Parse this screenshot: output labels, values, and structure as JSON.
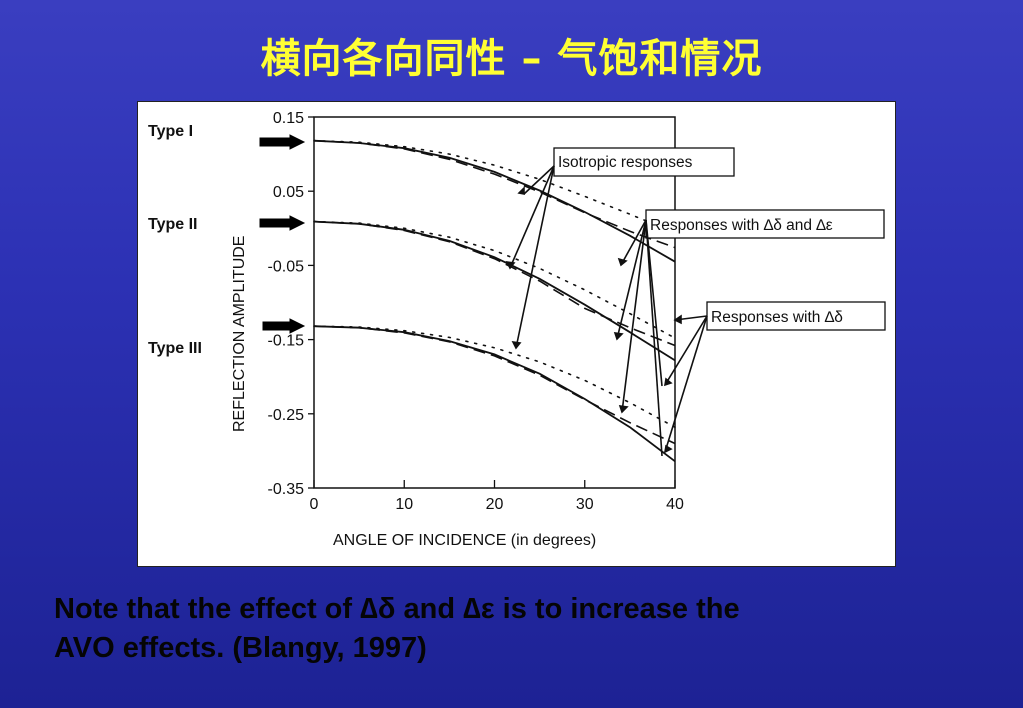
{
  "slide": {
    "title": "横向各向同性 – 气饱和情况",
    "note_line1": "Note that the effect of ∆δ and ∆ε is to increase the",
    "note_line2": "AVO effects. (Blangy, 1997)"
  },
  "chart_data": {
    "type": "line",
    "title": "",
    "xlabel": "ANGLE OF INCIDENCE (in degrees)",
    "ylabel": "REFLECTION AMPLITUDE",
    "xlim": [
      0,
      40
    ],
    "ylim": [
      -0.35,
      0.15
    ],
    "xticks": [
      "0",
      "10",
      "20",
      "30",
      "40"
    ],
    "yticks": [
      "0.15",
      "0.05",
      "-0.05",
      "-0.15",
      "-0.25",
      "-0.35"
    ],
    "grid": false,
    "type_labels": [
      "Type I",
      "Type II",
      "Type III"
    ],
    "callouts": [
      "Isotropic responses",
      "Responses with ∆δ and ∆ε",
      "Responses with ∆δ"
    ],
    "x": [
      0,
      5,
      10,
      15,
      20,
      25,
      30,
      35,
      40
    ],
    "series": [
      {
        "group": "Type I",
        "style": "solid",
        "values": [
          0.118,
          0.115,
          0.108,
          0.095,
          0.076,
          0.051,
          0.022,
          -0.01,
          -0.045
        ]
      },
      {
        "group": "Type I",
        "style": "dashed",
        "values": [
          0.118,
          0.115,
          0.107,
          0.093,
          0.073,
          0.049,
          0.021,
          -0.004,
          -0.026
        ]
      },
      {
        "group": "Type I",
        "style": "dotted",
        "values": [
          0.118,
          0.116,
          0.11,
          0.1,
          0.085,
          0.066,
          0.043,
          0.019,
          -0.006
        ]
      },
      {
        "group": "Type II",
        "style": "solid",
        "values": [
          0.009,
          0.006,
          -0.002,
          -0.017,
          -0.039,
          -0.068,
          -0.103,
          -0.14,
          -0.178
        ]
      },
      {
        "group": "Type II",
        "style": "dashed",
        "values": [
          0.009,
          0.006,
          -0.003,
          -0.018,
          -0.041,
          -0.071,
          -0.108,
          -0.134,
          -0.158
        ]
      },
      {
        "group": "Type II",
        "style": "dotted",
        "values": [
          0.009,
          0.007,
          0.0,
          -0.012,
          -0.03,
          -0.054,
          -0.083,
          -0.115,
          -0.148
        ]
      },
      {
        "group": "Type III",
        "style": "solid",
        "values": [
          -0.132,
          -0.134,
          -0.14,
          -0.152,
          -0.17,
          -0.196,
          -0.23,
          -0.268,
          -0.314
        ]
      },
      {
        "group": "Type III",
        "style": "dashed",
        "values": [
          -0.132,
          -0.134,
          -0.141,
          -0.153,
          -0.172,
          -0.198,
          -0.231,
          -0.262,
          -0.29
        ]
      },
      {
        "group": "Type III",
        "style": "dotted",
        "values": [
          -0.132,
          -0.133,
          -0.138,
          -0.147,
          -0.161,
          -0.18,
          -0.205,
          -0.235,
          -0.268
        ]
      }
    ]
  }
}
